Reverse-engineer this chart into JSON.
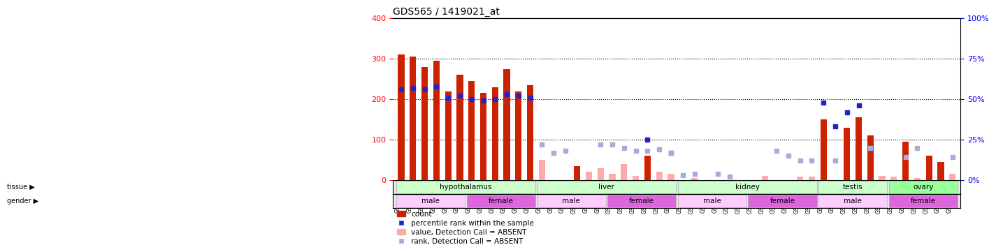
{
  "title": "GDS565 / 1419021_at",
  "samples": [
    "GSM19215",
    "GSM19216",
    "GSM19217",
    "GSM19218",
    "GSM19219",
    "GSM19220",
    "GSM19221",
    "GSM19222",
    "GSM19223",
    "GSM19224",
    "GSM19225",
    "GSM19226",
    "GSM19227",
    "GSM19228",
    "GSM19229",
    "GSM19230",
    "GSM19231",
    "GSM19232",
    "GSM19233",
    "GSM19234",
    "GSM19235",
    "GSM19236",
    "GSM19237",
    "GSM19238",
    "GSM19239",
    "GSM19240",
    "GSM19241",
    "GSM19242",
    "GSM19243",
    "GSM19244",
    "GSM19245",
    "GSM19246",
    "GSM19247",
    "GSM19248",
    "GSM19249",
    "GSM19250",
    "GSM19251",
    "GSM19252",
    "GSM19253",
    "GSM19254",
    "GSM19255",
    "GSM19256",
    "GSM19257",
    "GSM19258",
    "GSM19259",
    "GSM19260",
    "GSM19261",
    "GSM19262"
  ],
  "count": [
    310,
    305,
    280,
    295,
    220,
    260,
    245,
    215,
    230,
    275,
    220,
    235,
    null,
    null,
    null,
    35,
    null,
    null,
    null,
    null,
    null,
    60,
    null,
    null,
    null,
    null,
    null,
    null,
    null,
    null,
    null,
    null,
    null,
    null,
    null,
    null,
    150,
    null,
    130,
    155,
    110,
    null,
    null,
    95,
    null,
    60,
    45,
    null
  ],
  "rank": [
    56,
    57,
    56,
    58,
    51,
    52,
    50,
    49,
    50,
    53,
    52,
    51,
    null,
    null,
    null,
    null,
    null,
    null,
    null,
    null,
    null,
    null,
    null,
    null,
    null,
    null,
    null,
    null,
    null,
    null,
    null,
    null,
    null,
    null,
    null,
    null,
    null,
    null,
    null,
    null,
    null,
    null,
    null,
    null,
    null,
    null,
    null,
    null
  ],
  "absent_count": [
    null,
    null,
    null,
    null,
    null,
    null,
    null,
    null,
    null,
    null,
    null,
    null,
    50,
    null,
    null,
    null,
    20,
    30,
    15,
    40,
    10,
    null,
    20,
    15,
    null,
    5,
    null,
    null,
    null,
    null,
    null,
    10,
    null,
    null,
    8,
    8,
    null,
    null,
    null,
    null,
    null,
    10,
    8,
    null,
    5,
    null,
    null,
    15
  ],
  "absent_rank": [
    null,
    null,
    null,
    null,
    null,
    null,
    null,
    null,
    null,
    null,
    null,
    null,
    22,
    17,
    18,
    null,
    null,
    22,
    22,
    20,
    18,
    18,
    19,
    17,
    3,
    4,
    null,
    4,
    2,
    null,
    null,
    null,
    18,
    15,
    12,
    12,
    null,
    12,
    null,
    null,
    20,
    null,
    null,
    14,
    20,
    null,
    null,
    14
  ],
  "present_rank": [
    null,
    null,
    null,
    null,
    null,
    null,
    null,
    null,
    null,
    null,
    null,
    null,
    null,
    null,
    null,
    null,
    null,
    null,
    null,
    null,
    null,
    25,
    null,
    17,
    null,
    null,
    null,
    null,
    null,
    null,
    null,
    null,
    null,
    null,
    null,
    null,
    48,
    33,
    42,
    46,
    null,
    null,
    null,
    null,
    null,
    null,
    null,
    null
  ],
  "tissues": [
    {
      "name": "hypothalamus",
      "start": 0,
      "end": 11,
      "color": "#ccffcc"
    },
    {
      "name": "liver",
      "start": 12,
      "end": 23,
      "color": "#ccffcc"
    },
    {
      "name": "kidney",
      "start": 24,
      "end": 35,
      "color": "#ccffcc"
    },
    {
      "name": "testis",
      "start": 36,
      "end": 41,
      "color": "#ccffcc"
    },
    {
      "name": "ovary",
      "start": 42,
      "end": 47,
      "color": "#99ff99"
    }
  ],
  "genders": [
    {
      "name": "male",
      "start": 0,
      "end": 5,
      "color": "#ffccff"
    },
    {
      "name": "female",
      "start": 6,
      "end": 11,
      "color": "#ff99ff"
    },
    {
      "name": "male",
      "start": 12,
      "end": 17,
      "color": "#ffccff"
    },
    {
      "name": "female",
      "start": 18,
      "end": 23,
      "color": "#ff99ff"
    },
    {
      "name": "male",
      "start": 24,
      "end": 29,
      "color": "#ffccff"
    },
    {
      "name": "female",
      "start": 30,
      "end": 35,
      "color": "#ff99ff"
    },
    {
      "name": "male",
      "start": 36,
      "end": 41,
      "color": "#ffccff"
    },
    {
      "name": "female",
      "start": 42,
      "end": 47,
      "color": "#ff99ff"
    }
  ],
  "ylim_left": [
    0,
    400
  ],
  "ylim_right": [
    0,
    100
  ],
  "yticks_left": [
    0,
    100,
    200,
    300,
    400
  ],
  "yticks_right": [
    0,
    25,
    50,
    75,
    100
  ],
  "bar_color": "#cc2200",
  "rank_color": "#2222cc",
  "absent_bar_color": "#ffaaaa",
  "absent_rank_color": "#aaaadd",
  "bg_color": "#f0f0f0",
  "plot_bg": "#ffffff"
}
